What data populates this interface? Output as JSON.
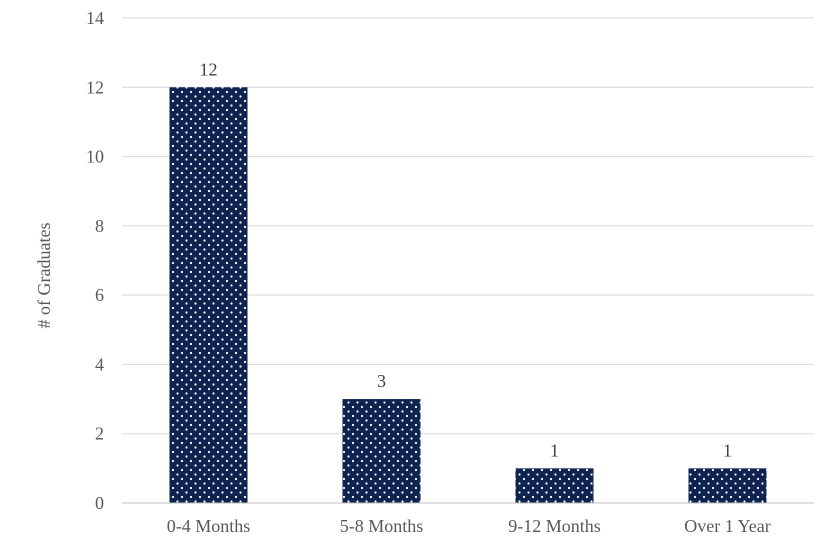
{
  "chart_data": {
    "type": "bar",
    "categories": [
      "0-4 Months",
      "5-8 Months",
      "9-12 Months",
      "Over 1 Year"
    ],
    "values": [
      12,
      3,
      1,
      1
    ],
    "data_labels": [
      "12",
      "3",
      "1",
      "1"
    ],
    "title": "",
    "xlabel": "",
    "ylabel": "# of Graduates",
    "ylim": [
      0,
      14
    ],
    "yticks": [
      0,
      2,
      4,
      6,
      8,
      10,
      12,
      14
    ],
    "grid": true,
    "legend": "none",
    "colors": {
      "bar": "#0e2350",
      "dots": "#ffffff",
      "grid": "#d9d9d9",
      "axis": "#bfbfbf"
    }
  }
}
